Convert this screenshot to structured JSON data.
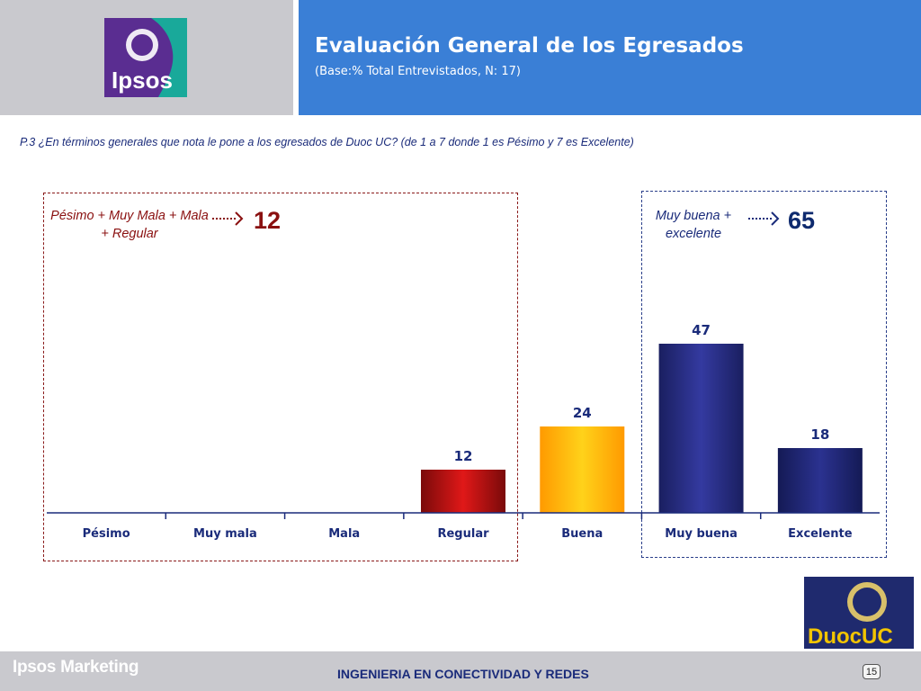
{
  "header": {
    "logo_text": "Ipsos",
    "title": "Evaluación General de los Egresados",
    "subtitle": "(Base:% Total Entrevistados, N: 17)"
  },
  "question": "P.3 ¿En términos generales que nota le pone a los egresados de Duoc UC? (de 1 a 7 donde 1 es Pésimo y 7 es Excelente)",
  "groups": {
    "negative": {
      "label": "Pésimo + Muy Mala + Mala + Regular",
      "value": "12",
      "color": "#8a1010"
    },
    "positive": {
      "label": "Muy buena + excelente",
      "value": "65",
      "color": "#0e2a6e"
    }
  },
  "chart_data": {
    "type": "bar",
    "categories": [
      "Pésimo",
      "Muy mala",
      "Mala",
      "Regular",
      "Buena",
      "Muy buena",
      "Excelente"
    ],
    "values": [
      null,
      null,
      null,
      12,
      24,
      47,
      18
    ],
    "data_labels": [
      "",
      "",
      "",
      "12",
      "24",
      "47",
      "18"
    ],
    "colors": [
      "#cc1010",
      "#cc1010",
      "#cc1010",
      "#cc1010",
      "#ffb400",
      "#2a2f8e",
      "#1f2670"
    ],
    "title": "",
    "xlabel": "",
    "ylabel": "",
    "ylim": [
      0,
      60
    ],
    "grid": false,
    "legend": "none"
  },
  "footer": {
    "brand": "Ipsos Marketing",
    "center": "INGENIERIA EN CONECTIVIDAD Y REDES",
    "page": "15",
    "duoc_logo_text": "DuocUC"
  },
  "colors": {
    "header_blue": "#3a7fd6",
    "panel_gray": "#c9c9ce",
    "axis_blue": "#1a2b7a"
  }
}
